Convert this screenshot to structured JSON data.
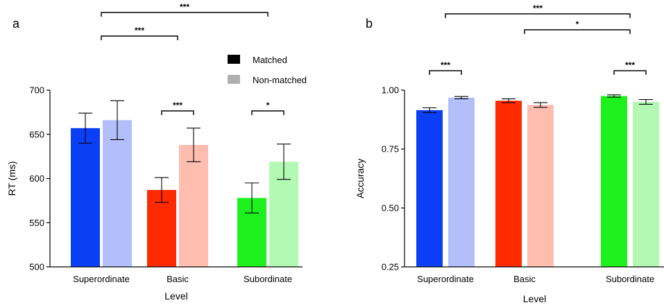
{
  "legend": {
    "matched": "Matched",
    "non_matched": "Non-matched"
  },
  "chart_data": [
    {
      "type": "bar",
      "panel_label": "a",
      "xlabel": "Level",
      "ylabel": "RT (ms)",
      "ylim": [
        500,
        700
      ],
      "yticks": [
        500,
        550,
        600,
        650,
        700
      ],
      "categories": [
        "Superordinate",
        "Basic",
        "Subordinate"
      ],
      "series": [
        {
          "name": "Matched",
          "values": [
            657,
            587,
            578
          ],
          "errors": [
            17,
            14,
            17
          ]
        },
        {
          "name": "Non-matched",
          "values": [
            666,
            638,
            619
          ],
          "errors": [
            22,
            19,
            20
          ]
        }
      ],
      "colors": {
        "matched": [
          "#0a3ff5",
          "#ff2a00",
          "#1ef01e"
        ],
        "non_matched": [
          "#b3bffb",
          "#ffbdb0",
          "#b3f9b3"
        ]
      },
      "significance": [
        {
          "from": [
            0,
            0.5
          ],
          "to": [
            2,
            0.5
          ],
          "label": "***"
        },
        {
          "from": [
            0,
            0.5
          ],
          "to": [
            1,
            0.5
          ],
          "label": "***"
        },
        {
          "from": [
            1,
            0
          ],
          "to": [
            1,
            1
          ],
          "label": "***"
        },
        {
          "from": [
            2,
            0
          ],
          "to": [
            2,
            1
          ],
          "label": "*"
        }
      ]
    },
    {
      "type": "bar",
      "panel_label": "b",
      "xlabel": "Level",
      "ylabel": "Accuracy",
      "ylim": [
        0.25,
        1.0
      ],
      "yticks": [
        0.25,
        0.5,
        0.75,
        1.0
      ],
      "ytick_labels": [
        "0.25",
        "0.50",
        "0.75",
        "1.00"
      ],
      "categories": [
        "Superordinate",
        "Basic",
        "Subordinate"
      ],
      "series": [
        {
          "name": "Matched",
          "values": [
            0.915,
            0.955,
            0.975
          ],
          "errors": [
            0.01,
            0.008,
            0.005
          ]
        },
        {
          "name": "Non-matched",
          "values": [
            0.968,
            0.937,
            0.95
          ],
          "errors": [
            0.005,
            0.01,
            0.01
          ]
        }
      ],
      "colors": {
        "matched": [
          "#0a3ff5",
          "#ff2a00",
          "#1ef01e"
        ],
        "non_matched": [
          "#b3bffb",
          "#ffbdb0",
          "#b3f9b3"
        ]
      },
      "significance": [
        {
          "from": [
            0,
            0.5
          ],
          "to": [
            2,
            0.5
          ],
          "label": "***"
        },
        {
          "from": [
            1,
            0.5
          ],
          "to": [
            2,
            0.5
          ],
          "label": "*"
        },
        {
          "from": [
            0,
            0
          ],
          "to": [
            0,
            1
          ],
          "label": "***"
        },
        {
          "from": [
            2,
            0
          ],
          "to": [
            2,
            1
          ],
          "label": "***"
        }
      ]
    }
  ]
}
